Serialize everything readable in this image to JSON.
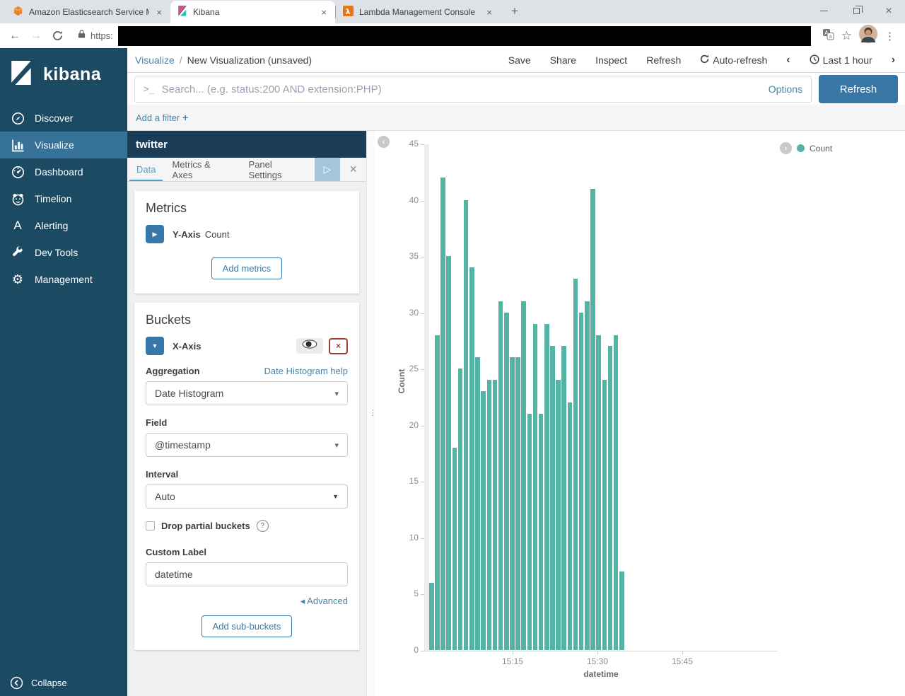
{
  "browser": {
    "tabs": [
      {
        "title": "Amazon Elasticsearch Service Ma",
        "icon": "aws-cube-icon"
      },
      {
        "title": "Kibana",
        "icon": "kibana-favicon-icon"
      },
      {
        "title": "Lambda Management Console",
        "icon": "lambda-icon"
      }
    ],
    "new_tab_label": "+",
    "address_protocol": "https:",
    "window_controls": [
      "minimize",
      "restore",
      "close"
    ]
  },
  "sidebar": {
    "logo_text": "kibana",
    "items": [
      {
        "label": "Discover",
        "icon": "compass-icon",
        "active": false
      },
      {
        "label": "Visualize",
        "icon": "bar-chart-icon",
        "active": true
      },
      {
        "label": "Dashboard",
        "icon": "gauge-icon",
        "active": false
      },
      {
        "label": "Timelion",
        "icon": "timelion-icon",
        "active": false
      },
      {
        "label": "Alerting",
        "icon": "letter-a-icon",
        "active": false
      },
      {
        "label": "Dev Tools",
        "icon": "wrench-icon",
        "active": false
      },
      {
        "label": "Management",
        "icon": "gear-icon",
        "active": false
      }
    ],
    "collapse_label": "Collapse"
  },
  "topnav": {
    "breadcrumb_section": "Visualize",
    "breadcrumb_separator": "/",
    "breadcrumb_page": "New Visualization (unsaved)",
    "actions": [
      "Save",
      "Share",
      "Inspect",
      "Refresh"
    ],
    "auto_refresh_label": "Auto-refresh",
    "time_range": "Last 1 hour",
    "prev_glyph": "‹",
    "next_glyph": "›"
  },
  "search": {
    "prompt_glyph": ">_",
    "placeholder": "Search... (e.g. status:200 AND extension:PHP)",
    "options_label": "Options",
    "refresh_label": "Refresh"
  },
  "filter": {
    "add_filter_label": "Add a filter",
    "plus_glyph": "+"
  },
  "editor": {
    "index_title": "twitter",
    "tabs": [
      "Data",
      "Metrics & Axes",
      "Panel Settings"
    ],
    "active_tab": "Data",
    "play_glyph": "▷",
    "close_glyph": "×",
    "metrics": {
      "heading": "Metrics",
      "rows": [
        {
          "label": "Y-Axis",
          "value": "Count"
        }
      ],
      "add_button": "Add metrics"
    },
    "buckets": {
      "heading": "Buckets",
      "row_label": "X-Axis",
      "delete_glyph": "×",
      "aggregation": {
        "label": "Aggregation",
        "help_link": "Date Histogram help",
        "value": "Date Histogram"
      },
      "field": {
        "label": "Field",
        "value": "@timestamp"
      },
      "interval": {
        "label": "Interval",
        "value": "Auto"
      },
      "drop_partial": {
        "label": "Drop partial buckets",
        "checked": false,
        "help_glyph": "?"
      },
      "custom_label": {
        "label": "Custom Label",
        "value": "datetime"
      },
      "advanced_link": "Advanced",
      "advanced_glyph": "◂",
      "add_button": "Add sub-buckets"
    }
  },
  "chart_data": {
    "type": "bar",
    "title": "",
    "xlabel": "datetime",
    "ylabel": "Count",
    "ylim": [
      0,
      45
    ],
    "y_ticks": [
      0,
      5,
      10,
      15,
      20,
      25,
      30,
      35,
      40,
      45
    ],
    "x_tick_labels": [
      "15:15",
      "15:30",
      "15:45"
    ],
    "grid": false,
    "legend": {
      "position": "top-right",
      "items": [
        {
          "label": "Count",
          "color": "#54B3A4"
        }
      ]
    },
    "categories": [
      "15:01",
      "15:02",
      "15:03",
      "15:04",
      "15:05",
      "15:06",
      "15:07",
      "15:08",
      "15:09",
      "15:10",
      "15:11",
      "15:12",
      "15:13",
      "15:14",
      "15:15",
      "15:16",
      "15:17",
      "15:18",
      "15:19",
      "15:20",
      "15:21",
      "15:22",
      "15:23",
      "15:24",
      "15:25",
      "15:26",
      "15:27",
      "15:28",
      "15:29",
      "15:30",
      "15:31",
      "15:32",
      "15:33",
      "15:34"
    ],
    "values": [
      6,
      28,
      42,
      35,
      18,
      25,
      40,
      34,
      26,
      23,
      24,
      24,
      31,
      30,
      26,
      26,
      31,
      21,
      29,
      21,
      29,
      27,
      24,
      27,
      22,
      33,
      30,
      31,
      41,
      28,
      24,
      27,
      28,
      7
    ]
  },
  "colors": {
    "bar_fill": "#54B3A4",
    "sidebar_bg": "#1C4A63",
    "sidebar_active_bg": "#377298",
    "panel_header_bg": "#1B3C57",
    "primary_button": "#3876A5",
    "link": "#4E84A5",
    "active_tab": "#4DA1C5",
    "danger": "#9A3B34",
    "play_button_bg": "#A3C6DD"
  }
}
